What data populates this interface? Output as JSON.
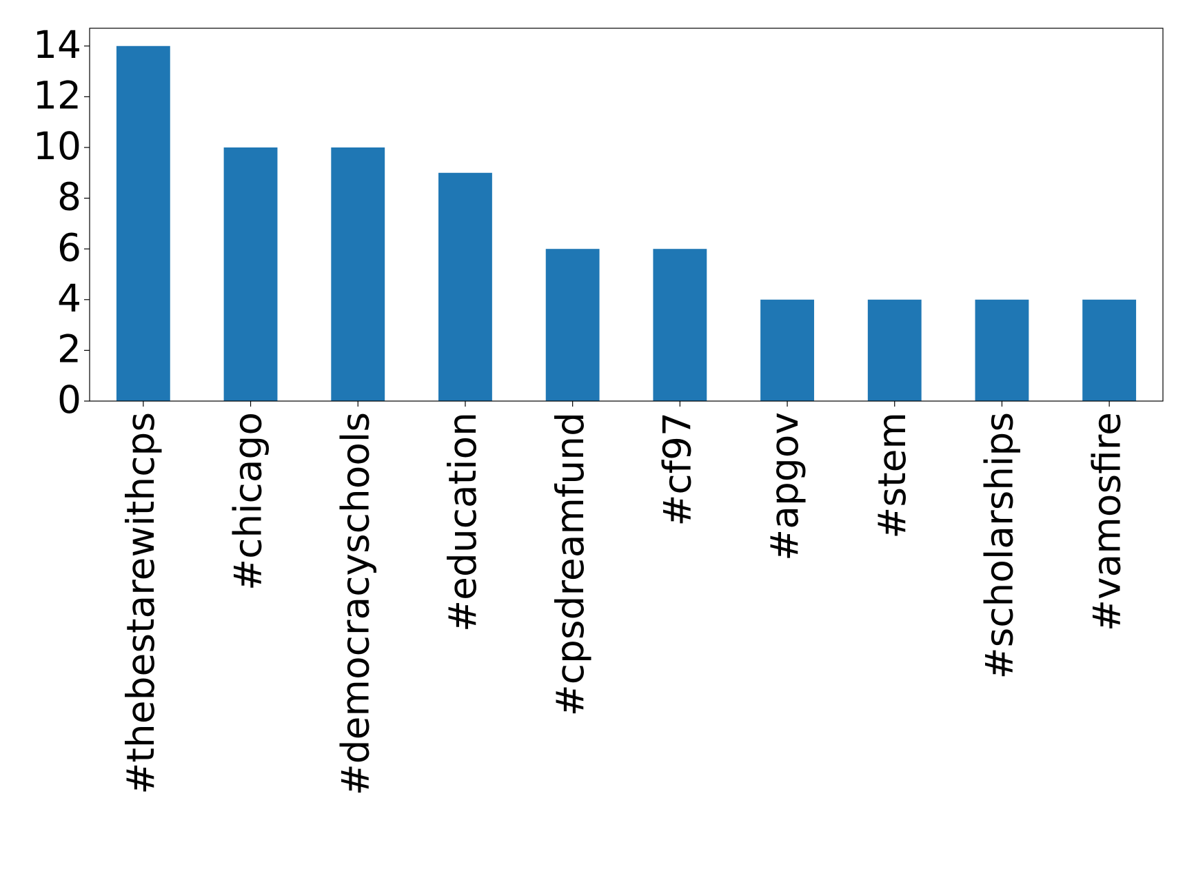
{
  "chart_data": {
    "type": "bar",
    "categories": [
      "#thebestarewithcps",
      "#chicago",
      "#democracyschools",
      "#education",
      "#cpsdreamfund",
      "#cf97",
      "#apgov",
      "#stem",
      "#scholarships",
      "#vamosfire"
    ],
    "values": [
      14,
      10,
      10,
      9,
      6,
      6,
      4,
      4,
      4,
      4
    ],
    "color": "#1f77b4",
    "ylim": [
      0,
      14.7
    ],
    "yticks": [
      0,
      2,
      4,
      6,
      8,
      10,
      12,
      14
    ],
    "grid": false
  }
}
